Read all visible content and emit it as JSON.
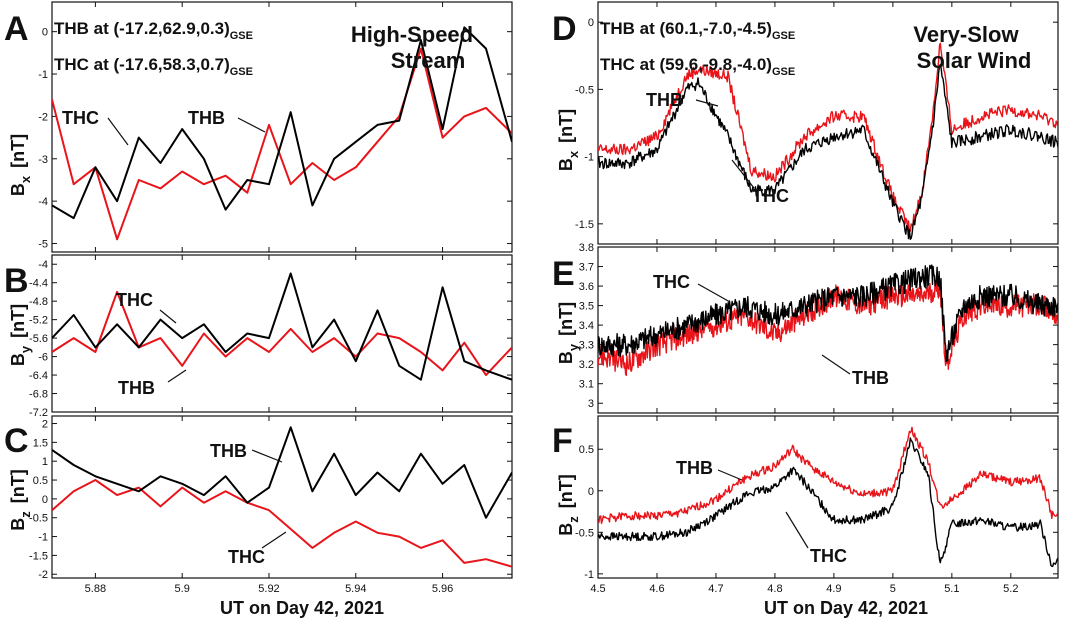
{
  "xlabel": "UT on Day 42, 2021",
  "sub": {
    "GSE": "GSE",
    "x": "x",
    "y": "y",
    "z": "z"
  },
  "ylabels": {
    "bx": "B",
    "by": "B",
    "bz": "B",
    "unit": "[nT]"
  },
  "letters": [
    "A",
    "B",
    "C",
    "D",
    "E",
    "F"
  ],
  "left": {
    "thb_pos": "THB at (-17.2,62.9,0.3)",
    "thc_pos": "THC at (-17.6,58.3,0.7)",
    "title_line1": "High-Speed",
    "title_line2": "Stream",
    "ann": {
      "a_thc": "THC",
      "a_thb": "THB",
      "b_thc": "THC",
      "b_thb": "THB",
      "c_thb": "THB",
      "c_thc": "THC"
    }
  },
  "right": {
    "thb_pos": "THB at (60.1,-7.0,-4.5)",
    "thc_pos": "THC at (59.6,-9.8,-4.0)",
    "title_line1": "Very-Slow",
    "title_line2": "Solar Wind",
    "ann": {
      "d_thb": "THB",
      "d_thc": "THC",
      "e_thc": "THC",
      "e_thb": "THB",
      "f_thb": "THB",
      "f_thc": "THC"
    }
  },
  "colors": {
    "thb": "#e8141a",
    "thc": "#000000"
  },
  "chart_data": [
    {
      "panel": "A",
      "type": "line",
      "ylabel": "Bx [nT]",
      "xlim": [
        5.87,
        5.976
      ],
      "ylim": [
        -5.2,
        0.7
      ],
      "xticks": [
        "5.88",
        "5.9",
        "5.92",
        "5.94",
        "5.96"
      ],
      "xtick_values": [
        5.88,
        5.9,
        5.92,
        5.94,
        5.96
      ],
      "yticks": [
        "-5",
        "-4",
        "-3",
        "-2",
        "-1",
        "0"
      ],
      "ytick_values": [
        -5,
        -4,
        -3,
        -2,
        -1,
        0
      ],
      "x": [
        5.87,
        5.875,
        5.88,
        5.885,
        5.89,
        5.895,
        5.9,
        5.905,
        5.91,
        5.915,
        5.92,
        5.925,
        5.93,
        5.935,
        5.94,
        5.945,
        5.95,
        5.955,
        5.96,
        5.965,
        5.97,
        5.976
      ],
      "series": [
        {
          "name": "THB",
          "color": "#e8141a",
          "values": [
            -1.6,
            -3.6,
            -3.2,
            -4.9,
            -3.5,
            -3.7,
            -3.3,
            -3.6,
            -3.4,
            -3.8,
            -2.2,
            -3.6,
            -3.1,
            -3.5,
            -3.2,
            -2.6,
            -2.0,
            -0.4,
            -2.5,
            -2.0,
            -1.8,
            -2.4
          ]
        },
        {
          "name": "THC",
          "color": "#000000",
          "values": [
            -4.1,
            -4.4,
            -3.2,
            -4.0,
            -2.5,
            -3.1,
            -2.3,
            -3.0,
            -4.2,
            -3.5,
            -3.6,
            -1.9,
            -4.1,
            -3.0,
            -2.6,
            -2.2,
            -2.1,
            -0.2,
            -2.3,
            0.1,
            -0.4,
            -2.6
          ]
        }
      ]
    },
    {
      "panel": "B",
      "type": "line",
      "ylabel": "By [nT]",
      "xlim": [
        5.87,
        5.976
      ],
      "ylim": [
        -7.2,
        -3.8
      ],
      "yticks": [
        "-4",
        "-4.4",
        "-4.8",
        "-5.2",
        "-5.6",
        "-6",
        "-6.4",
        "-6.8",
        "-7.2"
      ],
      "ytick_values": [
        -4.0,
        -4.4,
        -4.8,
        -5.2,
        -5.6,
        -6.0,
        -6.4,
        -6.8,
        -7.2
      ],
      "x": [
        5.87,
        5.875,
        5.88,
        5.885,
        5.89,
        5.895,
        5.9,
        5.905,
        5.91,
        5.915,
        5.92,
        5.925,
        5.93,
        5.935,
        5.94,
        5.945,
        5.95,
        5.955,
        5.96,
        5.965,
        5.97,
        5.976
      ],
      "series": [
        {
          "name": "THB",
          "color": "#e8141a",
          "values": [
            -5.9,
            -5.6,
            -5.9,
            -4.6,
            -5.8,
            -5.6,
            -6.2,
            -5.5,
            -6.0,
            -5.6,
            -5.9,
            -5.4,
            -5.9,
            -5.6,
            -6.0,
            -5.5,
            -5.6,
            -5.9,
            -6.3,
            -5.7,
            -6.4,
            -5.8
          ]
        },
        {
          "name": "THC",
          "color": "#000000",
          "values": [
            -5.6,
            -5.1,
            -5.8,
            -5.3,
            -5.8,
            -5.2,
            -5.6,
            -5.3,
            -5.9,
            -5.5,
            -5.6,
            -4.2,
            -5.8,
            -5.2,
            -6.1,
            -5.0,
            -6.2,
            -6.5,
            -4.5,
            -6.1,
            -6.3,
            -6.5
          ]
        }
      ]
    },
    {
      "panel": "C",
      "type": "line",
      "ylabel": "Bz [nT]",
      "xlim": [
        5.87,
        5.976
      ],
      "ylim": [
        -2.1,
        2.2
      ],
      "yticks": [
        "2",
        "1.5",
        "1",
        "0.5",
        "0",
        "-0.5",
        "-1",
        "-1.5",
        "-2"
      ],
      "ytick_values": [
        2,
        1.5,
        1,
        0.5,
        0,
        -0.5,
        -1,
        -1.5,
        -2
      ],
      "x": [
        5.87,
        5.875,
        5.88,
        5.885,
        5.89,
        5.895,
        5.9,
        5.905,
        5.91,
        5.915,
        5.92,
        5.925,
        5.93,
        5.935,
        5.94,
        5.945,
        5.95,
        5.955,
        5.96,
        5.965,
        5.97,
        5.976
      ],
      "series": [
        {
          "name": "THB",
          "color": "#e8141a",
          "values": [
            -0.3,
            0.2,
            0.5,
            0.1,
            0.3,
            -0.2,
            0.3,
            -0.1,
            0.2,
            -0.1,
            -0.3,
            -0.8,
            -1.3,
            -0.9,
            -0.6,
            -0.9,
            -1.0,
            -1.3,
            -1.1,
            -1.7,
            -1.6,
            -1.8
          ]
        },
        {
          "name": "THC",
          "color": "#000000",
          "values": [
            1.3,
            0.9,
            0.6,
            0.4,
            0.2,
            0.6,
            0.4,
            0.1,
            0.6,
            -0.1,
            0.3,
            1.9,
            0.2,
            1.2,
            0.1,
            0.7,
            0.2,
            1.2,
            0.4,
            0.9,
            -0.5,
            0.7
          ]
        }
      ]
    },
    {
      "panel": "D",
      "type": "line",
      "ylabel": "Bx [nT]",
      "xlim": [
        4.5,
        5.28
      ],
      "ylim": [
        -1.65,
        0.15
      ],
      "xticks": [
        "4.5",
        "4.6",
        "4.7",
        "4.8",
        "4.9",
        "5",
        "5.1",
        "5.2"
      ],
      "xtick_values": [
        4.5,
        4.6,
        4.7,
        4.8,
        4.9,
        5.0,
        5.1,
        5.2
      ],
      "yticks": [
        "0",
        "-0.5",
        "-1",
        "-1.5"
      ],
      "ytick_values": [
        0,
        -0.5,
        -1,
        -1.5
      ],
      "x": [
        4.5,
        4.55,
        4.6,
        4.65,
        4.67,
        4.72,
        4.76,
        4.8,
        4.85,
        4.9,
        4.95,
        5.0,
        5.03,
        5.05,
        5.07,
        5.08,
        5.1,
        5.15,
        5.2,
        5.25,
        5.28
      ],
      "series": [
        {
          "name": "THB",
          "color": "#e8141a",
          "values": [
            -0.95,
            -0.95,
            -0.85,
            -0.4,
            -0.35,
            -0.4,
            -1.1,
            -1.15,
            -0.85,
            -0.7,
            -0.7,
            -1.3,
            -1.55,
            -1.25,
            -0.6,
            -0.15,
            -0.8,
            -0.7,
            -0.65,
            -0.7,
            -0.75
          ]
        },
        {
          "name": "THC",
          "color": "#000000",
          "values": [
            -1.05,
            -1.05,
            -0.95,
            -0.5,
            -0.45,
            -0.85,
            -1.25,
            -1.25,
            -0.95,
            -0.85,
            -0.8,
            -1.35,
            -1.6,
            -1.3,
            -0.7,
            -0.3,
            -0.9,
            -0.85,
            -0.8,
            -0.85,
            -0.9
          ]
        }
      ]
    },
    {
      "panel": "E",
      "type": "line",
      "ylabel": "By [nT]",
      "xlim": [
        4.5,
        5.28
      ],
      "ylim": [
        2.95,
        3.8
      ],
      "yticks": [
        "3.8",
        "3.7",
        "3.6",
        "3.5",
        "3.4",
        "3.3",
        "3.2",
        "3.1",
        "3"
      ],
      "ytick_values": [
        3.8,
        3.7,
        3.6,
        3.5,
        3.4,
        3.3,
        3.2,
        3.1,
        3.0
      ],
      "x": [
        4.5,
        4.55,
        4.6,
        4.65,
        4.7,
        4.75,
        4.8,
        4.85,
        4.9,
        4.95,
        5.0,
        5.05,
        5.08,
        5.09,
        5.12,
        5.15,
        5.2,
        5.25,
        5.28
      ],
      "series": [
        {
          "name": "THB",
          "color": "#e8141a",
          "values": [
            3.25,
            3.2,
            3.3,
            3.35,
            3.4,
            3.45,
            3.35,
            3.45,
            3.55,
            3.5,
            3.55,
            3.55,
            3.6,
            3.2,
            3.45,
            3.5,
            3.5,
            3.5,
            3.45
          ]
        },
        {
          "name": "THC",
          "color": "#000000",
          "values": [
            3.3,
            3.3,
            3.35,
            3.4,
            3.45,
            3.5,
            3.45,
            3.5,
            3.55,
            3.55,
            3.6,
            3.65,
            3.65,
            3.25,
            3.5,
            3.55,
            3.55,
            3.5,
            3.5
          ]
        }
      ]
    },
    {
      "panel": "F",
      "type": "line",
      "ylabel": "Bz [nT]",
      "xlim": [
        4.5,
        5.28
      ],
      "ylim": [
        -1.05,
        0.9
      ],
      "yticks": [
        "0.5",
        "0",
        "-0.5",
        "-1"
      ],
      "ytick_values": [
        0.5,
        0,
        -0.5,
        -1
      ],
      "x": [
        4.5,
        4.55,
        4.6,
        4.65,
        4.7,
        4.75,
        4.8,
        4.83,
        4.85,
        4.9,
        4.95,
        5.0,
        5.03,
        5.06,
        5.08,
        5.1,
        5.15,
        5.2,
        5.25,
        5.27,
        5.28
      ],
      "series": [
        {
          "name": "THB",
          "color": "#e8141a",
          "values": [
            -0.35,
            -0.3,
            -0.3,
            -0.25,
            -0.1,
            0.15,
            0.3,
            0.5,
            0.35,
            0.1,
            -0.05,
            0.0,
            0.75,
            0.35,
            -0.2,
            -0.1,
            0.2,
            0.1,
            0.15,
            -0.3,
            -0.3
          ]
        },
        {
          "name": "THC",
          "color": "#000000",
          "values": [
            -0.55,
            -0.55,
            -0.55,
            -0.5,
            -0.3,
            -0.05,
            0.05,
            0.25,
            0.1,
            -0.35,
            -0.35,
            -0.2,
            0.6,
            0.2,
            -0.9,
            -0.4,
            -0.35,
            -0.45,
            -0.4,
            -0.9,
            -0.85
          ]
        }
      ]
    }
  ]
}
